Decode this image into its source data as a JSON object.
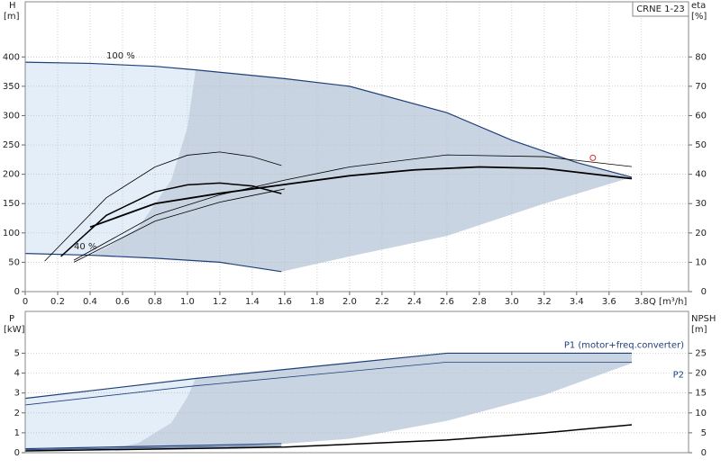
{
  "chart_data": [
    {
      "type": "line",
      "title": "CRNE 1-23",
      "xlabel": "Q [m³/h]",
      "ylabel": "H",
      "yunit": "[m]",
      "y2label": "eta",
      "y2unit": "[%]",
      "xlim": [
        0,
        4.09
      ],
      "ylim": [
        0,
        494
      ],
      "y2lim": [
        0,
        98.8
      ],
      "xticks": [
        0,
        0.2,
        0.4,
        0.6,
        0.8,
        {
          "value": 1,
          "label": "1.0"
        },
        1.2,
        1.4,
        1.6,
        1.8,
        {
          "value": 2,
          "label": "2.0"
        },
        2.2,
        2.4,
        2.6,
        2.8,
        {
          "value": 3,
          "label": "3.0"
        },
        3.2,
        3.4,
        3.6,
        3.8
      ],
      "yticks": [
        0,
        50,
        100,
        150,
        200,
        250,
        300,
        350,
        400
      ],
      "y2ticks": [
        0,
        10,
        20,
        30,
        40,
        50,
        60,
        70,
        80
      ],
      "grid": true,
      "regions": [
        {
          "color": "#e4eef9",
          "x": [
            0,
            0.4,
            0.8,
            1.05,
            1.0,
            0.9,
            0.7,
            0.5,
            0.4,
            0
          ],
          "values": [
            391,
            389,
            384,
            378,
            280,
            190,
            110,
            75,
            62,
            65
          ]
        },
        {
          "color": "#c8d4e2",
          "x": [
            1.05,
            1.6,
            2.0,
            2.6,
            3.0,
            3.4,
            3.74,
            3.2,
            2.6,
            2.0,
            1.58,
            1.2,
            0.8,
            0.4,
            0.5,
            0.7,
            0.9,
            1.0,
            1.05
          ],
          "values": [
            378,
            363,
            350,
            305,
            258,
            220,
            195,
            150,
            95,
            60,
            34,
            50,
            57,
            62,
            75,
            110,
            190,
            280,
            378
          ]
        }
      ],
      "series": [
        {
          "color": "#1f3f7a",
          "line_width": 1.2,
          "x": [
            0,
            0.4,
            0.8,
            1.05,
            1.6,
            2.0,
            2.6,
            3.0,
            3.4,
            3.74
          ],
          "values": [
            391,
            389,
            384,
            378,
            363,
            350,
            305,
            258,
            220,
            195
          ]
        },
        {
          "color": "#1f3f7a",
          "line_width": 1.2,
          "x": [
            0,
            0.4,
            0.8,
            1.2,
            1.58
          ],
          "values": [
            65,
            62,
            57,
            50,
            34
          ]
        },
        {
          "color": "#000000",
          "line_width": 1.8,
          "axis": "y2",
          "x": [
            0.4,
            0.8,
            1.2,
            1.6,
            2.0,
            2.4,
            2.8,
            3.2,
            3.74
          ],
          "values": [
            22,
            30,
            33.5,
            36.5,
            39.5,
            41.5,
            42.5,
            42,
            38.5
          ]
        },
        {
          "color": "#000000",
          "line_width": 0.8,
          "axis": "y2",
          "x": [
            0.3,
            0.8,
            1.2,
            1.6,
            2.0,
            2.6,
            3.2,
            3.74
          ],
          "values": [
            10.7,
            26,
            33,
            38,
            42.5,
            46.6,
            46,
            42.6
          ]
        },
        {
          "color": "#000000",
          "line_width": 0.8,
          "axis": "y2",
          "x": [
            0.3,
            0.8,
            1.2,
            1.6
          ],
          "values": [
            10,
            24,
            30.5,
            35
          ]
        },
        {
          "color": "#000000",
          "line_width": 0.8,
          "axis": "y2",
          "x": [
            0.12,
            0.5,
            0.8,
            1.0,
            1.2,
            1.4,
            1.58
          ],
          "values": [
            10.4,
            32,
            42.5,
            46.5,
            47.6,
            46,
            43
          ]
        },
        {
          "color": "#000000",
          "line_width": 1.5,
          "axis": "y2",
          "x": [
            0.22,
            0.5,
            0.8,
            1.0,
            1.2,
            1.4,
            1.58
          ],
          "values": [
            12,
            26,
            34,
            36.4,
            37,
            36,
            33.4
          ]
        }
      ],
      "points": [
        {
          "color": "#e03030",
          "x": 3.5,
          "y": 228
        }
      ],
      "annotations": [
        {
          "text": "100 %",
          "x": 0.5,
          "y": 402
        },
        {
          "text": "40 %",
          "x": 0.3,
          "y": 77
        }
      ]
    },
    {
      "type": "line",
      "ylabel": "P",
      "yunit": "[kW]",
      "y2label": "NPSH",
      "y2unit": "[m]",
      "xlim": [
        0,
        4.09
      ],
      "ylim": [
        0,
        7.1
      ],
      "y2lim": [
        0,
        35.5
      ],
      "yticks": [
        0,
        1,
        2,
        3,
        4,
        5
      ],
      "y2ticks": [
        0,
        5,
        10,
        15,
        20,
        25
      ],
      "grid": true,
      "regions": [
        {
          "color": "#e4eef9",
          "x": [
            0,
            1.05,
            1.0,
            0.9,
            0.7,
            0.5,
            0
          ],
          "values": [
            2.73,
            3.73,
            2.8,
            1.5,
            0.5,
            0.1,
            0.1
          ]
        },
        {
          "color": "#c8d4e2",
          "x": [
            1.05,
            2.6,
            3.74,
            3.74,
            3.2,
            2.6,
            2.0,
            1.6,
            1.0,
            0.5,
            0.7,
            0.9,
            1.0,
            1.05
          ],
          "values": [
            3.73,
            5.0,
            5.0,
            4.5,
            2.9,
            1.6,
            0.7,
            0.45,
            0.2,
            0.1,
            0.5,
            1.5,
            2.8,
            3.73
          ]
        }
      ],
      "series": [
        {
          "name": "P1 (motor+freq.converter)",
          "color": "#1f3f7a",
          "line_width": 1.2,
          "x": [
            0,
            1.05,
            2.6,
            3.74
          ],
          "values": [
            2.73,
            3.73,
            5.0,
            5.0
          ]
        },
        {
          "name": "P2",
          "color": "#1f3f7a",
          "line_width": 0.8,
          "x": [
            0,
            1.05,
            2.6,
            3.74
          ],
          "values": [
            2.4,
            3.36,
            4.55,
            4.55
          ]
        },
        {
          "color": "#1f3f7a",
          "line_width": 1.2,
          "x": [
            0,
            1.58
          ],
          "values": [
            0.2,
            0.45
          ]
        },
        {
          "color": "#1f3f7a",
          "line_width": 0.8,
          "x": [
            0,
            1.58
          ],
          "values": [
            0.15,
            0.35
          ]
        },
        {
          "color": "#000000",
          "line_width": 1.5,
          "axis": "y2",
          "x": [
            0,
            1.6,
            2.6,
            3.2,
            3.74
          ],
          "values": [
            0.45,
            1.4,
            3.2,
            5,
            7.0
          ]
        }
      ]
    }
  ]
}
